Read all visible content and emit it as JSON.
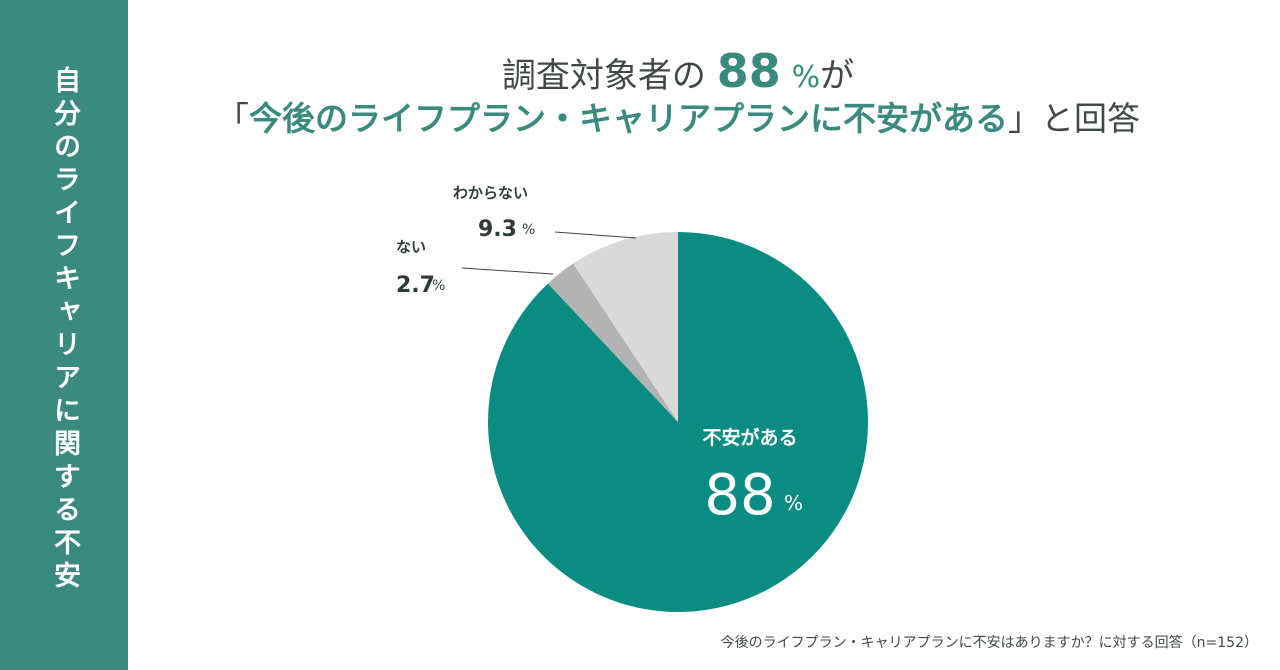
{
  "sidebar": {
    "title": "自分のライフキャリアに関する不安"
  },
  "headline": {
    "line1_prefix": "調査対象者の",
    "line1_number": "88",
    "line1_unit": "%",
    "line1_suffix": "が",
    "line2_open": "「",
    "line2_highlight": "今後のライフプラン・キャリアプランに不安がある",
    "line2_close": "」と回答"
  },
  "chart_data": {
    "type": "pie",
    "slices": [
      {
        "label": "不安がある",
        "value": 88,
        "display": "88",
        "unit": "%",
        "color": "#0b8c82"
      },
      {
        "label": "ない",
        "value": 2.7,
        "display": "2.7",
        "unit": "%",
        "color": "#b3b3b3"
      },
      {
        "label": "わからない",
        "value": 9.3,
        "display": "9.3",
        "unit": "%",
        "color": "#d9d9d9"
      }
    ],
    "start": "12 o'clock",
    "direction": "clockwise",
    "note": "今後のライフプラン・キャリアプランに不安はありますか？に対する回答（n=152）"
  }
}
